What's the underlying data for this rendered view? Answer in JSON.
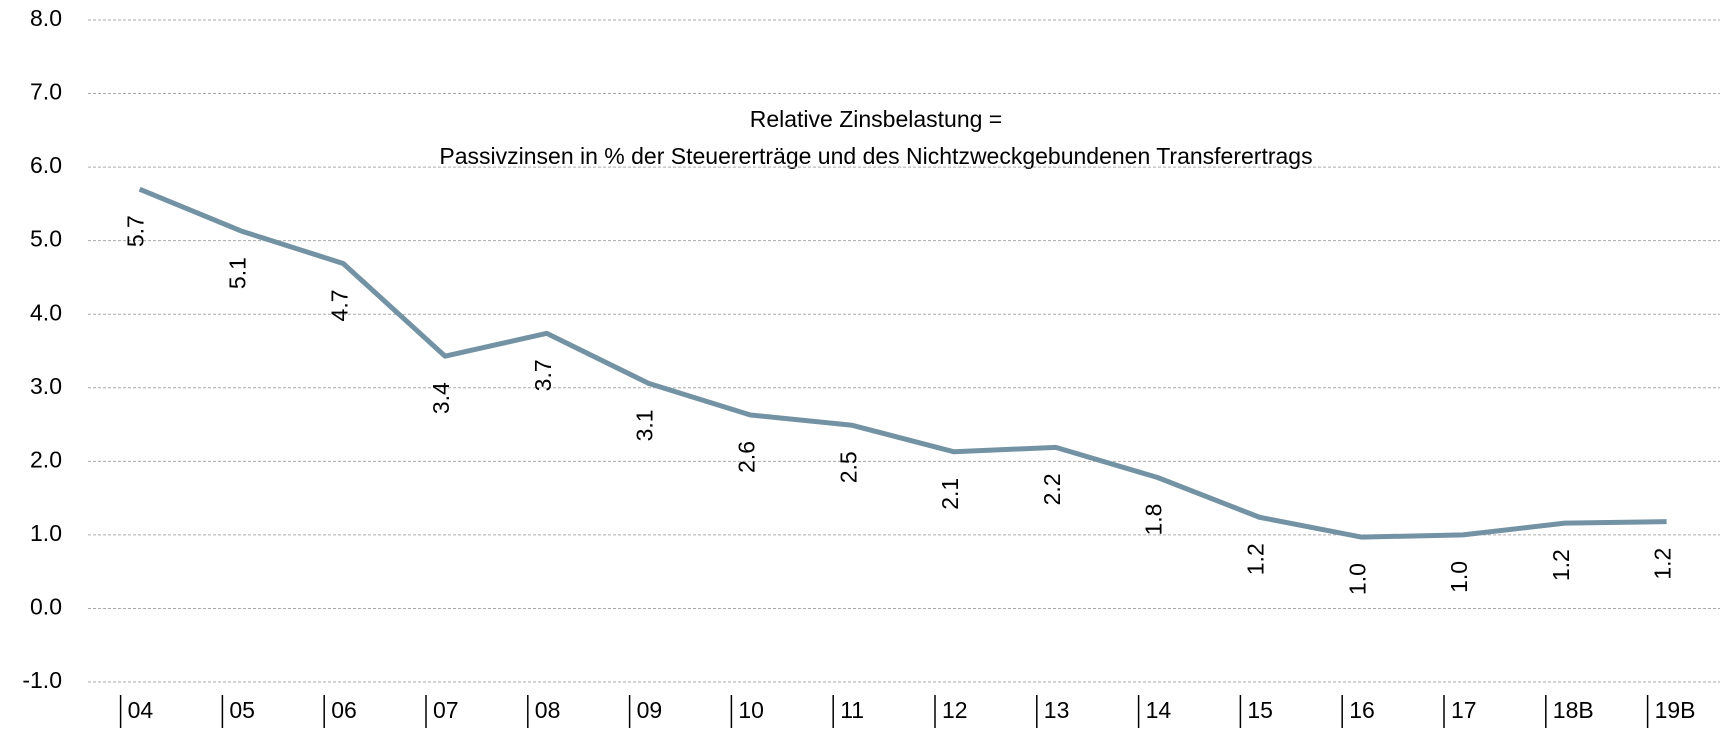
{
  "chart_data": {
    "type": "line",
    "title": "Relative Zinsbelastung =",
    "subtitle": "Passivzinsen in % der Steuererträge und des Nichtzweckgebundenen Transferertrags",
    "categories": [
      "04",
      "05",
      "06",
      "07",
      "08",
      "09",
      "10",
      "11",
      "12",
      "13",
      "14",
      "15",
      "16",
      "17",
      "18B",
      "19B"
    ],
    "series": [
      {
        "color": "#7393a5",
        "values": [
          5.7,
          5.13,
          4.69,
          3.43,
          3.74,
          3.06,
          2.63,
          2.49,
          2.13,
          2.19,
          1.78,
          1.24,
          0.97,
          1.0,
          1.16,
          1.18
        ],
        "value_labels": [
          "5.7",
          "5.1",
          "4.7",
          "3.4",
          "3.7",
          "3.1",
          "2.6",
          "2.5",
          "2.1",
          "2.2",
          "1.8",
          "1.2",
          "1.0",
          "1.0",
          "1.2",
          "1.2"
        ]
      }
    ],
    "ylim": [
      -1,
      8
    ],
    "yticks": [
      {
        "value": -1,
        "label": "-1.0"
      },
      {
        "value": 0,
        "label": "0.0"
      },
      {
        "value": 1,
        "label": "1.0"
      },
      {
        "value": 2,
        "label": "2.0"
      },
      {
        "value": 3,
        "label": "3.0"
      },
      {
        "value": 4,
        "label": "4.0"
      },
      {
        "value": 5,
        "label": "5.0"
      },
      {
        "value": 6,
        "label": "6.0"
      },
      {
        "value": 7,
        "label": "7.0"
      },
      {
        "value": 8,
        "label": "8.0"
      }
    ],
    "grid": true
  }
}
